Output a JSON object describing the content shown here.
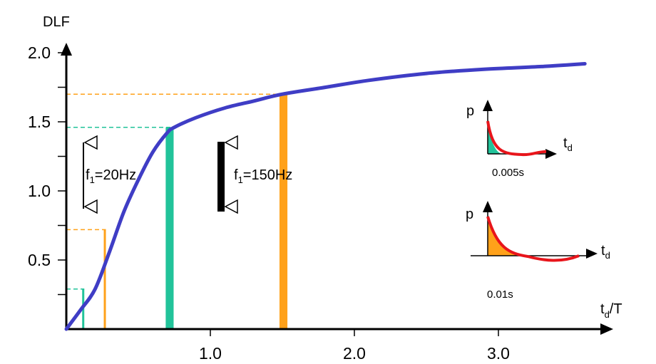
{
  "chart_data": {
    "type": "line",
    "ylabel": "DLF",
    "xlabel": {
      "main": "t",
      "sub": "d",
      "tail": "/T"
    },
    "x_ticks": [
      {
        "v": 1.0,
        "label": "1.0"
      },
      {
        "v": 2.0,
        "label": "2.0"
      },
      {
        "v": 3.0,
        "label": "3.0"
      }
    ],
    "y_ticks": [
      {
        "v": 0.5,
        "label": "0.5"
      },
      {
        "v": 1.0,
        "label": "1.0"
      },
      {
        "v": 1.5,
        "label": "1.5"
      },
      {
        "v": 2.0,
        "label": "2.0"
      }
    ],
    "xlim": [
      0,
      3.6
    ],
    "ylim": [
      0,
      2.0
    ],
    "series": [
      {
        "values": [
          [
            0,
            0
          ],
          [
            0.1,
            0.14
          ],
          [
            0.2,
            0.29
          ],
          [
            0.3,
            0.56
          ],
          [
            0.4,
            0.85
          ],
          [
            0.5,
            1.08
          ],
          [
            0.6,
            1.28
          ],
          [
            0.7,
            1.42
          ],
          [
            0.75,
            1.46
          ],
          [
            0.9,
            1.53
          ],
          [
            1.1,
            1.6
          ],
          [
            1.3,
            1.65
          ],
          [
            1.5,
            1.7
          ],
          [
            1.8,
            1.75
          ],
          [
            2.1,
            1.8
          ],
          [
            2.5,
            1.85
          ],
          [
            2.9,
            1.88
          ],
          [
            3.3,
            1.9
          ],
          [
            3.6,
            1.92
          ]
        ],
        "color": "#3f3dc5"
      }
    ],
    "markers": [
      {
        "x": 0.11,
        "y": 0.29,
        "color": "#22c39a",
        "bar_width": 0.012,
        "guide": true
      },
      {
        "x": 0.26,
        "y": 0.72,
        "color": "#ffa11a",
        "bar_width": 0.012,
        "guide": true
      },
      {
        "x": 0.69,
        "y": 1.46,
        "color": "#22c39a",
        "bar_width": 0.055,
        "guide": true
      },
      {
        "x": 1.48,
        "y": 1.7,
        "color": "#ffa11a",
        "bar_width": 0.055,
        "guide": true
      }
    ]
  },
  "annotations": {
    "beam1": {
      "f": "f",
      "sub": "1",
      "rest": "=20Hz"
    },
    "beam2": {
      "f": "f",
      "sub": "1",
      "rest": "=150Hz"
    }
  },
  "insets": [
    {
      "p": "p",
      "t": "t",
      "t_sub": "d",
      "duration": "0.005s",
      "fill": "#22c39a"
    },
    {
      "p": "p",
      "t": "t",
      "t_sub": "d",
      "duration": "0.01s",
      "fill": "#ffa11a"
    }
  ],
  "colors": {
    "curve": "#3f3dc5",
    "green": "#22c39a",
    "orange": "#ffa11a",
    "red": "#e8151b"
  }
}
